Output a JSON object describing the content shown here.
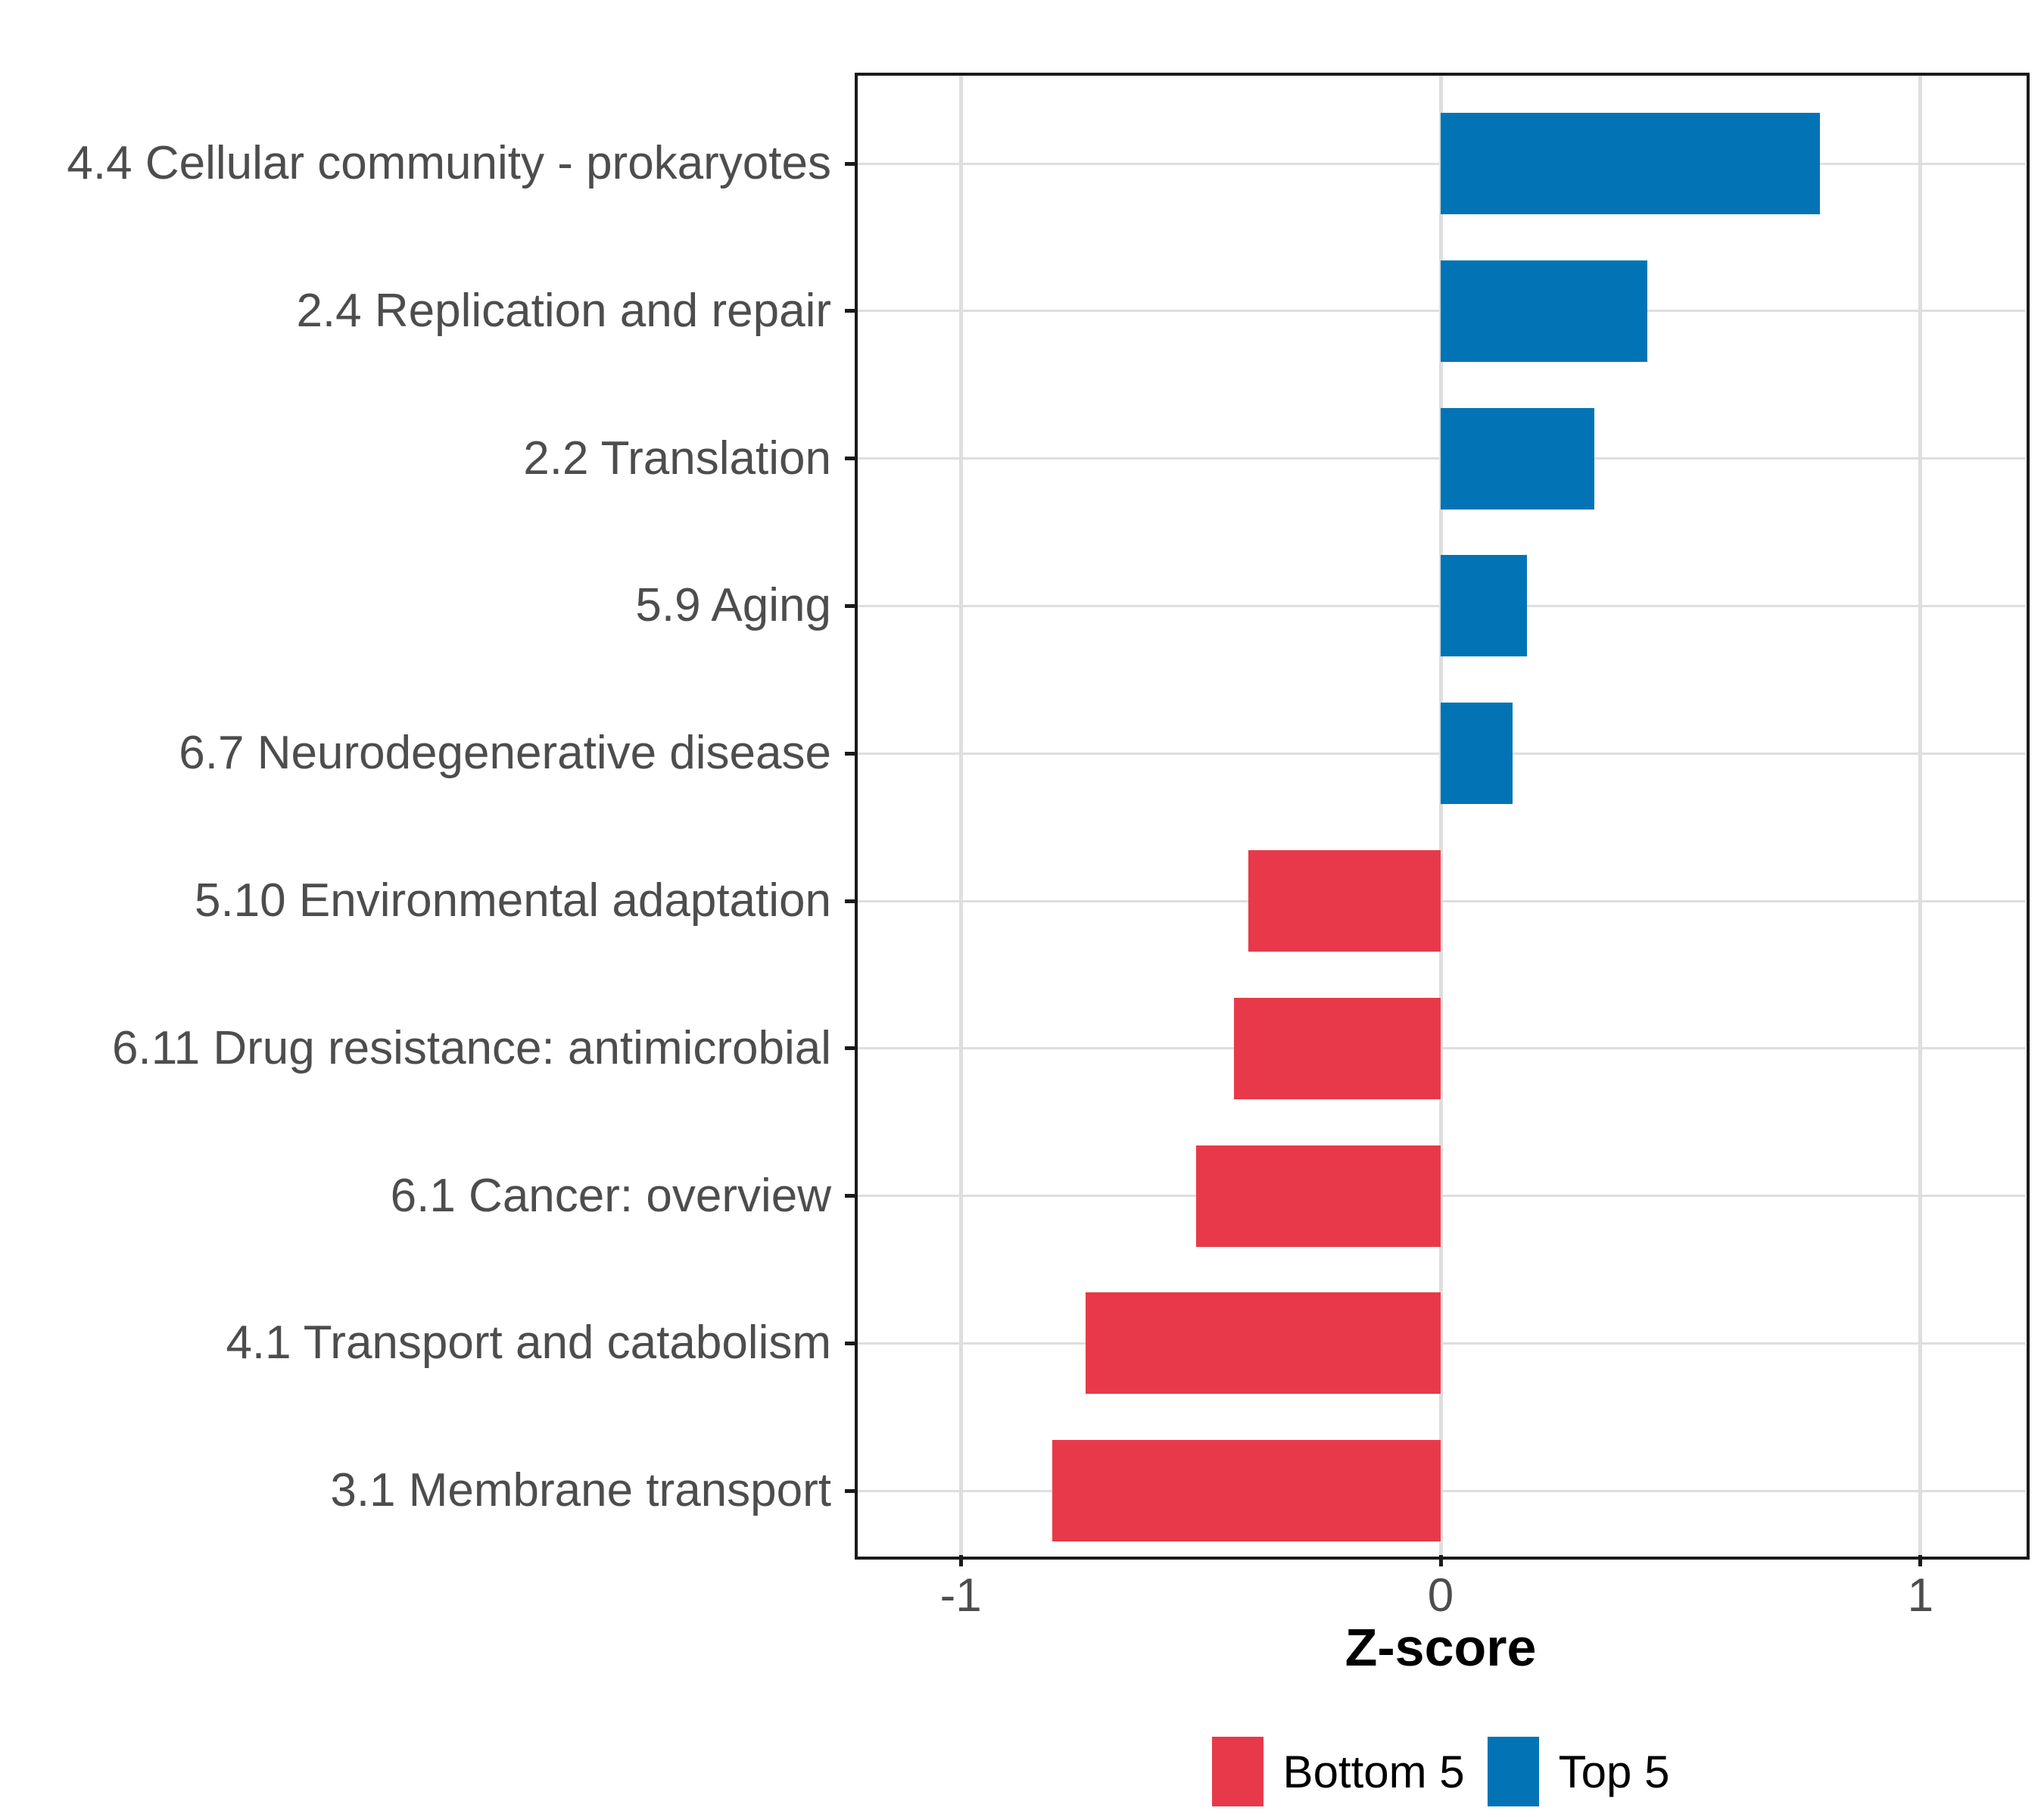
{
  "chart_data": {
    "type": "bar",
    "orientation": "horizontal",
    "title": "",
    "xlabel": "Z-score",
    "ylabel": "",
    "xlim": [
      -1.218,
      1.218
    ],
    "x_ticks": [
      {
        "value": -1,
        "label": "-1"
      },
      {
        "value": 0,
        "label": "0"
      },
      {
        "value": 1,
        "label": "1"
      }
    ],
    "grid": true,
    "legend_position": "bottom",
    "bars": [
      {
        "label": "4.4 Cellular community - prokaryotes",
        "value": 0.79,
        "group": "Top 5"
      },
      {
        "label": "2.4 Replication and repair",
        "value": 0.43,
        "group": "Top 5"
      },
      {
        "label": "2.2 Translation",
        "value": 0.32,
        "group": "Top 5"
      },
      {
        "label": "5.9 Aging",
        "value": 0.18,
        "group": "Top 5"
      },
      {
        "label": "6.7 Neurodegenerative disease",
        "value": 0.15,
        "group": "Top 5"
      },
      {
        "label": "5.10 Environmental adaptation",
        "value": -0.4,
        "group": "Bottom 5"
      },
      {
        "label": "6.11 Drug resistance: antimicrobial",
        "value": -0.43,
        "group": "Bottom 5"
      },
      {
        "label": "6.1 Cancer: overview",
        "value": -0.51,
        "group": "Bottom 5"
      },
      {
        "label": "4.1 Transport and catabolism",
        "value": -0.74,
        "group": "Bottom 5"
      },
      {
        "label": "3.1 Membrane transport",
        "value": -0.81,
        "group": "Bottom 5"
      }
    ],
    "legend": [
      {
        "name": "Bottom 5",
        "color": "#E8394A"
      },
      {
        "name": "Top 5",
        "color": "#0274B5"
      }
    ],
    "colors": {
      "bottom5": "#E8394A",
      "top5": "#0274B5",
      "grid": "#DEDEDE",
      "axis_text": "#4D4D4D",
      "panel_border": "#1A1A1A",
      "axis_title": "#000000"
    }
  }
}
